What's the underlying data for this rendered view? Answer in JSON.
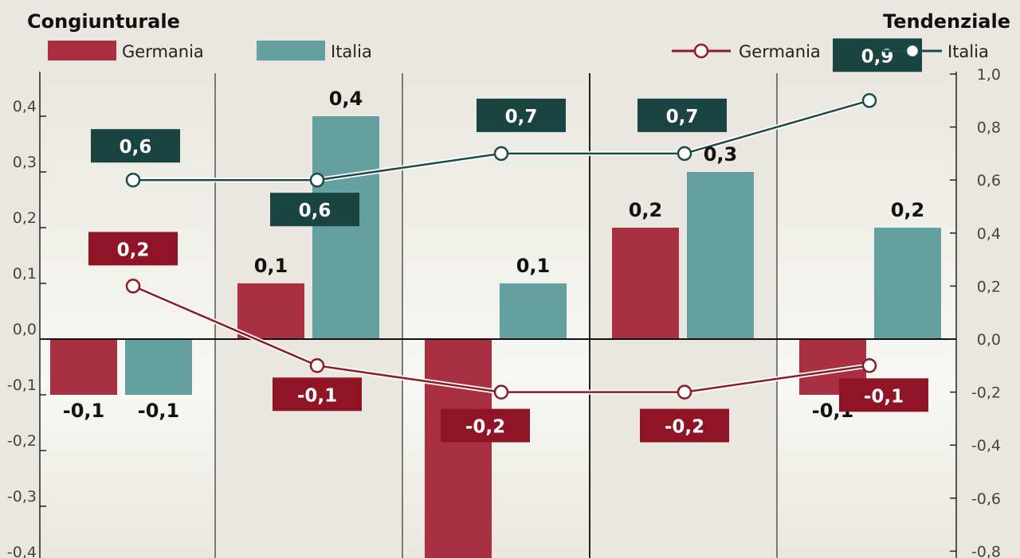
{
  "colors": {
    "germania_bar": "#a83040",
    "italia_bar": "#64a0a0",
    "germania_line": "#8e1a26",
    "italia_line": "#1d4b47",
    "germania_box": "#8e1426",
    "italia_box": "#1a4440",
    "band_light": "#f7f7f4",
    "band_dark": "#e9e7df"
  },
  "chart_data": {
    "type": "bar",
    "left_axis": {
      "title": "Congiunturale",
      "ylim": [
        -0.4,
        0.45
      ],
      "ticks": [
        "0,4",
        "0,3",
        "0,2",
        "0,1",
        "0,0",
        "-0,1",
        "-0,2",
        "-0,3",
        "-0,4"
      ]
    },
    "right_axis": {
      "title": "Tendenziale",
      "ylim": [
        -0.8,
        1.0
      ],
      "ticks": [
        "1,0",
        "0,8",
        "0,6",
        "0,4",
        "0,2",
        "0,0",
        "-0,2",
        "-0,4",
        "-0,6",
        "-0,8"
      ]
    },
    "legend": {
      "bars": [
        {
          "name": "Germania",
          "color": "#a83040"
        },
        {
          "name": "Italia",
          "color": "#64a0a0"
        }
      ],
      "lines": [
        {
          "name": "Germania",
          "color": "#8e1a26"
        },
        {
          "name": "Italia",
          "color": "#1d4b47"
        }
      ]
    },
    "categories": [
      "",
      "",
      "",
      "",
      ""
    ],
    "bar_series": [
      {
        "name": "Germania",
        "values": [
          -0.1,
          0.1,
          -0.4,
          0.2,
          -0.1
        ],
        "labels": [
          "-0,1",
          "0,1",
          "",
          "0,2",
          "-0,1"
        ]
      },
      {
        "name": "Italia",
        "values": [
          -0.1,
          0.4,
          0.1,
          0.3,
          0.2
        ],
        "labels": [
          "-0,1",
          "0,4",
          "0,1",
          "0,3",
          "0,2"
        ]
      }
    ],
    "line_series": [
      {
        "name": "Germania",
        "values": [
          0.2,
          -0.1,
          -0.2,
          -0.2,
          -0.1
        ],
        "labels": [
          "0,2",
          "-0,1",
          "-0,2",
          "-0,2",
          "-0,1"
        ]
      },
      {
        "name": "Italia",
        "values": [
          0.6,
          0.6,
          0.7,
          0.7,
          0.9
        ],
        "labels": [
          "0,6",
          "0,6",
          "0,7",
          "0,7",
          "0,9"
        ]
      }
    ]
  }
}
